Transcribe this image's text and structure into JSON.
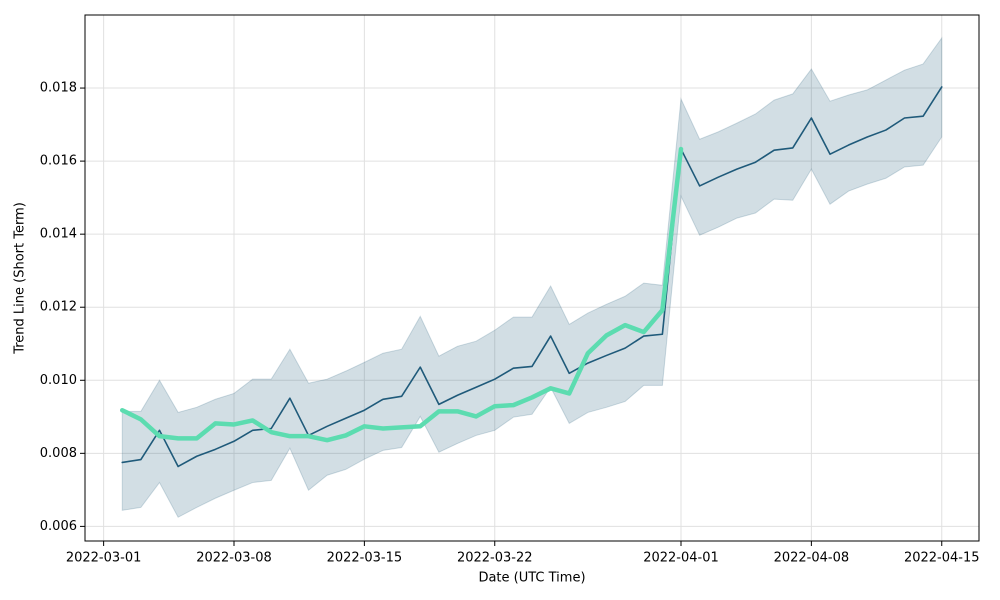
{
  "chart_data": {
    "type": "line",
    "xlabel": "Date (UTC Time)",
    "ylabel": "Trend Line (Short Term)",
    "x": [
      "2022-03-02",
      "2022-03-03",
      "2022-03-04",
      "2022-03-05",
      "2022-03-06",
      "2022-03-07",
      "2022-03-08",
      "2022-03-09",
      "2022-03-10",
      "2022-03-11",
      "2022-03-12",
      "2022-03-13",
      "2022-03-14",
      "2022-03-15",
      "2022-03-16",
      "2022-03-17",
      "2022-03-18",
      "2022-03-19",
      "2022-03-20",
      "2022-03-21",
      "2022-03-22",
      "2022-03-23",
      "2022-03-24",
      "2022-03-25",
      "2022-03-26",
      "2022-03-27",
      "2022-03-28",
      "2022-03-29",
      "2022-03-30",
      "2022-03-31",
      "2022-04-01",
      "2022-04-02",
      "2022-04-03",
      "2022-04-04",
      "2022-04-05",
      "2022-04-06",
      "2022-04-07",
      "2022-04-08",
      "2022-04-09",
      "2022-04-10",
      "2022-04-11",
      "2022-04-12",
      "2022-04-13",
      "2022-04-14",
      "2022-04-15"
    ],
    "band": {
      "color": "#1f5a7a",
      "upper": [
        0.00915,
        0.00915,
        0.01,
        0.00912,
        0.00926,
        0.00948,
        0.00964,
        0.01003,
        0.01003,
        0.01085,
        0.00992,
        0.01003,
        0.01025,
        0.01049,
        0.01074,
        0.01085,
        0.01175,
        0.01066,
        0.01093,
        0.01107,
        0.01137,
        0.01173,
        0.01173,
        0.01258,
        0.01153,
        0.01184,
        0.01208,
        0.0123,
        0.01266,
        0.0126,
        0.0177,
        0.0166,
        0.0168,
        0.01704,
        0.01729,
        0.01767,
        0.01784,
        0.01852,
        0.01764,
        0.01781,
        0.01795,
        0.01822,
        0.01849,
        0.01866,
        0.01937
      ],
      "lower": [
        0.00644,
        0.00652,
        0.0072,
        0.00625,
        0.00652,
        0.00677,
        0.00699,
        0.0072,
        0.00726,
        0.00814,
        0.00699,
        0.0074,
        0.00756,
        0.00784,
        0.00808,
        0.00816,
        0.00901,
        0.00803,
        0.00827,
        0.00849,
        0.00863,
        0.00899,
        0.00907,
        0.00981,
        0.00882,
        0.00912,
        0.00926,
        0.00942,
        0.00986,
        0.00986,
        0.01504,
        0.01397,
        0.01419,
        0.01444,
        0.01458,
        0.01496,
        0.01493,
        0.01578,
        0.01482,
        0.01518,
        0.01537,
        0.01553,
        0.01584,
        0.01589,
        0.01666
      ]
    },
    "series": [
      {
        "color": "#1f5a7a",
        "width": 1.6,
        "values": [
          0.00775,
          0.00783,
          0.00863,
          0.00764,
          0.00792,
          0.00811,
          0.00833,
          0.00863,
          0.00868,
          0.00951,
          0.00849,
          0.00874,
          0.00896,
          0.00918,
          0.00948,
          0.00956,
          0.01036,
          0.00934,
          0.00959,
          0.00981,
          0.01003,
          0.01033,
          0.01038,
          0.01121,
          0.01019,
          0.01047,
          0.01068,
          0.01088,
          0.01121,
          0.01126,
          0.01633,
          0.01532,
          0.01556,
          0.01578,
          0.01597,
          0.0163,
          0.01636,
          0.01718,
          0.01619,
          0.01644,
          0.01666,
          0.01685,
          0.01718,
          0.01723,
          0.01803
        ]
      },
      {
        "color": "#5cdcb0",
        "width": 4.5,
        "values": [
          0.00918,
          0.00893,
          0.00847,
          0.00841,
          0.00841,
          0.00882,
          0.00879,
          0.0089,
          0.00858,
          0.00847,
          0.00847,
          0.00836,
          0.00849,
          0.00874,
          0.00868,
          0.00871,
          0.00874,
          0.00915,
          0.00915,
          0.00901,
          0.00929,
          0.00932,
          0.00953,
          0.00978,
          0.00964,
          0.01074,
          0.01123,
          0.01151,
          0.01132,
          0.01192,
          0.01633,
          null,
          null,
          null,
          null,
          null,
          null,
          null,
          null,
          null,
          null,
          null,
          null,
          null,
          null
        ]
      }
    ],
    "xlim": [
      "2022-02-28",
      "2022-04-17"
    ],
    "xticks": [
      "2022-03-01",
      "2022-03-08",
      "2022-03-15",
      "2022-03-22",
      "2022-04-01",
      "2022-04-08",
      "2022-04-15"
    ],
    "ylim": [
      0.0056,
      0.02
    ],
    "yticks": [
      {
        "value": 0.006,
        "label": "0.006"
      },
      {
        "value": 0.008,
        "label": "0.008"
      },
      {
        "value": 0.01,
        "label": "0.010"
      },
      {
        "value": 0.012,
        "label": "0.012"
      },
      {
        "value": 0.014,
        "label": "0.014"
      },
      {
        "value": 0.016,
        "label": "0.016"
      },
      {
        "value": 0.018,
        "label": "0.018"
      }
    ],
    "grid": true
  }
}
